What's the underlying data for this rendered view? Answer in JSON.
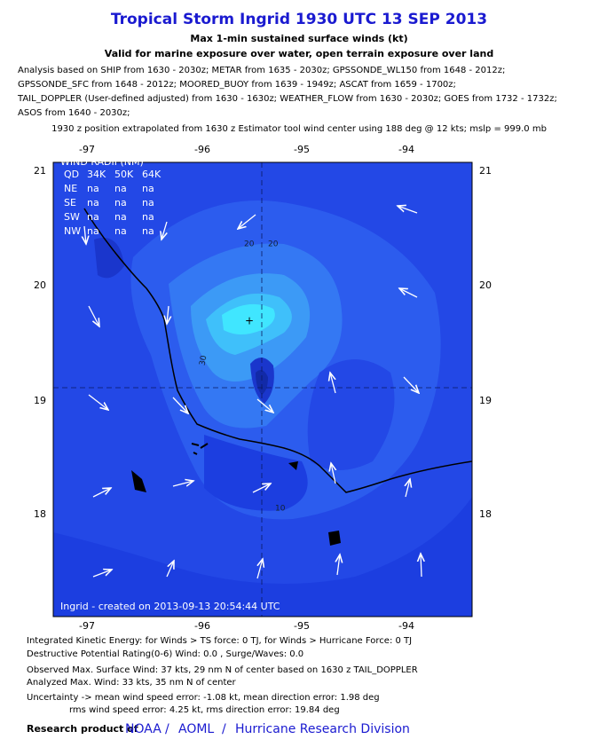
{
  "header": {
    "title": "Tropical Storm Ingrid 1930 UTC 13 SEP 2013",
    "subtitle": "Max 1-min sustained surface winds (kt)",
    "subtitle2": "Valid for marine exposure over water, open terrain exposure over land"
  },
  "analysis_lines": [
    "Analysis based on SHIP from 1630 - 2030z; METAR from 1635 - 2030z; GPSSONDE_WL150 from 1648 - 2012z;",
    "GPSSONDE_SFC from 1648 - 2012z; MOORED_BUOY from 1639 - 1949z; ASCAT from 1659 - 1700z;",
    "TAIL_DOPPLER (User-defined adjusted) from 1630 - 1630z; WEATHER_FLOW from 1630 - 2030z; GOES from 1732 - 1732z;",
    "ASOS from 1640 - 2030z;"
  ],
  "position_note": "1930 z position extrapolated from 1630 z Estimator tool wind center using 188 deg @ 12 kts; mslp = 999.0 mb",
  "map": {
    "lon_labels": [
      "-97",
      "-96",
      "-95",
      "-94"
    ],
    "lat_labels": [
      "21",
      "20",
      "19",
      "18"
    ],
    "wind_radii": {
      "title": "WIND RADII (NM)",
      "header": [
        "QD",
        "34K",
        "50K",
        "64K"
      ],
      "rows": [
        [
          "NE",
          "na",
          "na",
          "na"
        ],
        [
          "SE",
          "na",
          "na",
          "na"
        ],
        [
          "SW",
          "na",
          "na",
          "na"
        ],
        [
          "NW",
          "na",
          "na",
          "na"
        ]
      ]
    },
    "contour_labels": [
      "20",
      "30",
      "20",
      "10"
    ],
    "credit": "Ingrid - created on 2013-09-13 20:54:44 UTC"
  },
  "footer": {
    "lines": [
      "Integrated Kinetic Energy: for Winds > TS force: 0 TJ, for Winds > Hurricane Force: 0 TJ",
      "Destructive Potential Rating(0-6)  Wind: 0.0 , Surge/Waves: 0.0",
      "Observed Max. Surface Wind: 37 kts, 29 nm N of center based on 1630 z TAIL_DOPPLER",
      "Analyzed Max. Wind: 33 kts, 35 nm  N of center",
      "Uncertainty -> mean wind speed error:  -1.08 kt, mean direction error: 1.98 deg",
      "rms wind speed error: 4.25 kt, rms direction error: 19.84 deg"
    ],
    "research_label": "Research product of",
    "link_parts": [
      "NOAA",
      "/",
      "AOML",
      "/",
      "Hurricane Research Division"
    ]
  }
}
